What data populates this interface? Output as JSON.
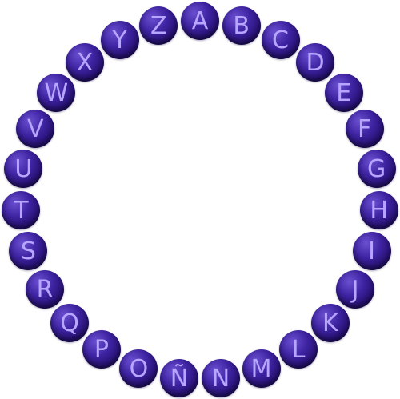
{
  "ring": {
    "letters": [
      "A",
      "B",
      "C",
      "D",
      "E",
      "F",
      "G",
      "H",
      "I",
      "J",
      "K",
      "L",
      "M",
      "N",
      "Ñ",
      "O",
      "P",
      "Q",
      "R",
      "S",
      "T",
      "U",
      "V",
      "W",
      "X",
      "Y",
      "Z"
    ]
  },
  "colors": {
    "ball_dark": "#281276",
    "ball_mid": "#3f24a3",
    "ball_highlight": "#6a4fd0",
    "letter": "#b7a6ff",
    "background": "#ffffff"
  }
}
